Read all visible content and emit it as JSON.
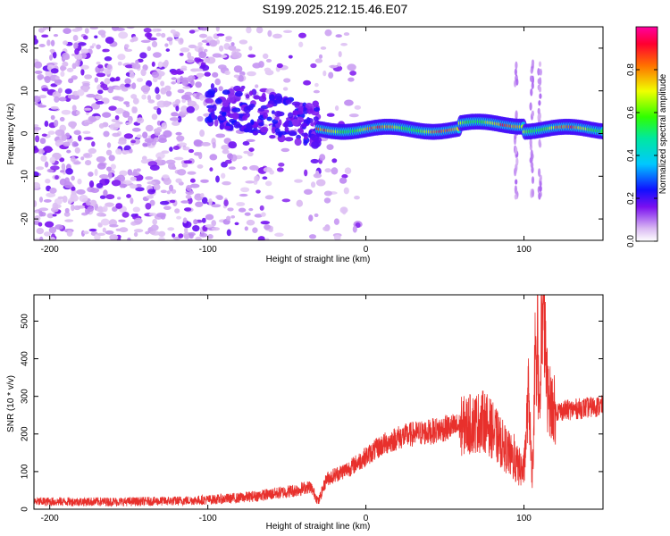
{
  "title": "S199.2025.212.15.46.E07",
  "chart_data": [
    {
      "type": "heatmap",
      "xlabel": "Height of straight line (km)",
      "ylabel": "Frequency (Hz)",
      "xlim": [
        -210,
        150
      ],
      "ylim": [
        -25,
        25
      ],
      "x_ticks": [
        -200,
        -100,
        0,
        100
      ],
      "y_ticks": [
        -20,
        -10,
        0,
        10,
        20
      ],
      "colormap": "rainbow (white-violet-blue-cyan-green-yellow-red-magenta)",
      "features": [
        {
          "name": "scattered noise",
          "x_range": [
            -210,
            -30
          ],
          "y_range": [
            -25,
            25
          ],
          "amplitude": 0.1
        },
        {
          "name": "rising feature",
          "x_range": [
            -100,
            -30
          ],
          "center_freq_start": 7,
          "center_freq_end": 2,
          "amplitude": 0.2
        },
        {
          "name": "main ridge",
          "x_range": [
            -30,
            150
          ],
          "center_freq": 1,
          "amplitude_peak": 0.95
        },
        {
          "name": "vertical streaks",
          "x_values": [
            95,
            105,
            110
          ],
          "y_range": [
            -15,
            17
          ],
          "amplitude": 0.12
        }
      ]
    },
    {
      "type": "colorbar",
      "label": "Normalized spectral amplitude",
      "range": [
        0,
        1
      ],
      "ticks": [
        0.0,
        0.2,
        0.4,
        0.6,
        0.8
      ]
    },
    {
      "type": "line",
      "xlabel": "Height of straight line (km)",
      "ylabel": "SNR (10 * v/v)",
      "xlim": [
        -210,
        150
      ],
      "ylim": [
        0,
        570
      ],
      "x_ticks": [
        -200,
        -100,
        0,
        100
      ],
      "y_ticks": [
        0,
        100,
        200,
        300,
        400,
        500
      ],
      "series": [
        {
          "color": "#e8302c",
          "x": [
            -210,
            -180,
            -150,
            -120,
            -100,
            -80,
            -60,
            -45,
            -35,
            -30,
            -25,
            -20,
            -10,
            0,
            10,
            20,
            30,
            40,
            50,
            60,
            70,
            75,
            80,
            85,
            90,
            95,
            100,
            103,
            105,
            108,
            110,
            112,
            115,
            120,
            130,
            140,
            150
          ],
          "y": [
            20,
            20,
            20,
            22,
            25,
            30,
            40,
            50,
            60,
            20,
            80,
            90,
            110,
            140,
            170,
            190,
            200,
            205,
            215,
            220,
            230,
            235,
            210,
            180,
            150,
            120,
            100,
            320,
            70,
            430,
            250,
            560,
            300,
            260,
            265,
            270,
            275
          ]
        }
      ]
    }
  ]
}
